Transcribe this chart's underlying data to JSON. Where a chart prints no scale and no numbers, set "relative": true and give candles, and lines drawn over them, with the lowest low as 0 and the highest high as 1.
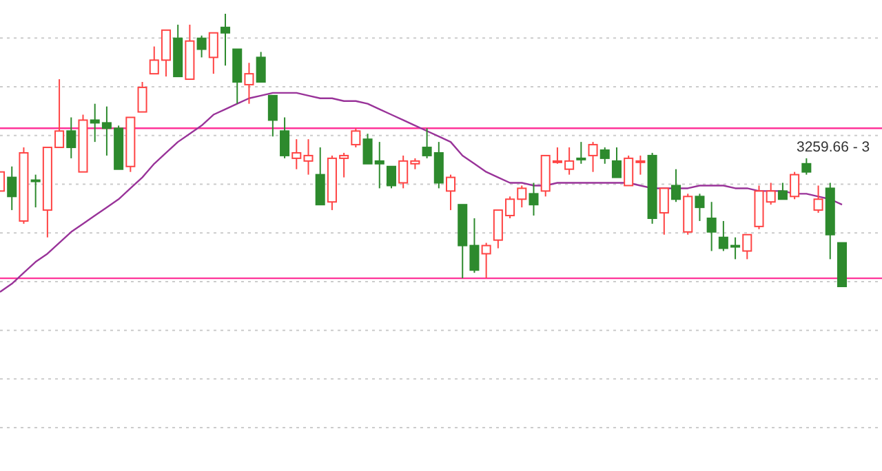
{
  "chart_data": {
    "type": "candlestick",
    "relative": true,
    "grid": "y",
    "categories": [
      null,
      null,
      null,
      null,
      null,
      null,
      null,
      null,
      null,
      null,
      null,
      null,
      null,
      null,
      null,
      null,
      null,
      null,
      null,
      null,
      null,
      null,
      null,
      null,
      null,
      null,
      null,
      null,
      null,
      null,
      null,
      null,
      null,
      null,
      null,
      null,
      null,
      null,
      null,
      null,
      null,
      null,
      null,
      null,
      null,
      null,
      null,
      null,
      null,
      null,
      null,
      null,
      null,
      null,
      null,
      null,
      null,
      null,
      null,
      null,
      null,
      null,
      null,
      null,
      null,
      null,
      null,
      null,
      null,
      null,
      null,
      null
    ],
    "ohlc": [
      [
        0.35,
        0.42,
        0.35,
        0.42
      ],
      [
        0.4,
        0.44,
        0.28,
        0.33
      ],
      [
        0.24,
        0.51,
        0.23,
        0.49
      ],
      [
        0.39,
        0.41,
        0.29,
        0.39
      ],
      [
        0.28,
        0.51,
        0.18,
        0.51
      ],
      [
        0.51,
        0.76,
        0.51,
        0.57
      ],
      [
        0.57,
        0.62,
        0.47,
        0.51
      ],
      [
        0.42,
        0.63,
        0.42,
        0.61
      ],
      [
        0.61,
        0.67,
        0.53,
        0.6
      ],
      [
        0.6,
        0.66,
        0.48,
        0.58
      ],
      [
        0.58,
        0.59,
        0.43,
        0.43
      ],
      [
        0.44,
        0.62,
        0.42,
        0.62
      ],
      [
        0.64,
        0.75,
        0.64,
        0.73
      ],
      [
        0.78,
        0.88,
        0.78,
        0.83
      ],
      [
        0.83,
        0.94,
        0.77,
        0.94
      ],
      [
        0.91,
        0.96,
        0.77,
        0.77
      ],
      [
        0.76,
        0.96,
        0.76,
        0.9
      ],
      [
        0.91,
        0.92,
        0.84,
        0.87
      ],
      [
        0.84,
        0.93,
        0.78,
        0.93
      ],
      [
        0.95,
        1.0,
        0.81,
        0.93
      ],
      [
        0.87,
        0.87,
        0.67,
        0.75
      ],
      [
        0.74,
        0.82,
        0.67,
        0.78
      ],
      [
        0.84,
        0.86,
        0.75,
        0.75
      ],
      [
        0.7,
        0.7,
        0.55,
        0.61
      ],
      [
        0.57,
        0.62,
        0.47,
        0.48
      ],
      [
        0.47,
        0.54,
        0.43,
        0.49
      ],
      [
        0.46,
        0.54,
        0.41,
        0.48
      ],
      [
        0.41,
        0.51,
        0.3,
        0.3
      ],
      [
        0.31,
        0.48,
        0.28,
        0.47
      ],
      [
        0.47,
        0.49,
        0.4,
        0.48
      ],
      [
        0.52,
        0.58,
        0.51,
        0.57
      ],
      [
        0.54,
        0.56,
        0.45,
        0.45
      ],
      [
        0.46,
        0.53,
        0.36,
        0.45
      ],
      [
        0.44,
        0.44,
        0.36,
        0.37
      ],
      [
        0.38,
        0.48,
        0.36,
        0.46
      ],
      [
        0.45,
        0.47,
        0.43,
        0.46
      ],
      [
        0.51,
        0.58,
        0.47,
        0.48
      ],
      [
        0.49,
        0.53,
        0.36,
        0.38
      ],
      [
        0.35,
        0.41,
        0.28,
        0.4
      ],
      [
        0.3,
        0.3,
        0.03,
        0.15
      ],
      [
        0.15,
        0.25,
        0.05,
        0.06
      ],
      [
        0.12,
        0.16,
        0.03,
        0.15
      ],
      [
        0.17,
        0.28,
        0.14,
        0.28
      ],
      [
        0.26,
        0.33,
        0.25,
        0.32
      ],
      [
        0.32,
        0.37,
        0.29,
        0.36
      ],
      [
        0.34,
        0.38,
        0.26,
        0.3
      ],
      [
        0.35,
        0.48,
        0.33,
        0.48
      ],
      [
        0.46,
        0.51,
        0.45,
        0.46
      ],
      [
        0.43,
        0.51,
        0.41,
        0.46
      ],
      [
        0.47,
        0.53,
        0.45,
        0.47
      ],
      [
        0.48,
        0.53,
        0.42,
        0.52
      ],
      [
        0.5,
        0.51,
        0.45,
        0.47
      ],
      [
        0.46,
        0.51,
        0.4,
        0.4
      ],
      [
        0.37,
        0.48,
        0.37,
        0.47
      ],
      [
        0.46,
        0.48,
        0.41,
        0.46
      ],
      [
        0.48,
        0.49,
        0.23,
        0.25
      ],
      [
        0.27,
        0.36,
        0.19,
        0.36
      ],
      [
        0.37,
        0.43,
        0.31,
        0.32
      ],
      [
        0.2,
        0.34,
        0.19,
        0.33
      ],
      [
        0.33,
        0.34,
        0.24,
        0.29
      ],
      [
        0.25,
        0.31,
        0.13,
        0.2
      ],
      [
        0.18,
        0.24,
        0.13,
        0.14
      ],
      [
        0.15,
        0.18,
        0.1,
        0.15
      ],
      [
        0.13,
        0.19,
        0.1,
        0.19
      ],
      [
        0.22,
        0.37,
        0.21,
        0.35
      ],
      [
        0.31,
        0.38,
        0.3,
        0.35
      ],
      [
        0.35,
        0.38,
        0.32,
        0.32
      ],
      [
        0.33,
        0.42,
        0.32,
        0.41
      ],
      [
        0.45,
        0.47,
        0.41,
        0.42
      ],
      [
        0.28,
        0.37,
        0.27,
        0.32
      ],
      [
        0.36,
        0.38,
        0.1,
        0.19
      ],
      [
        0.16,
        0.16,
        0,
        0
      ]
    ],
    "colors": [
      "#ff4444",
      "#2d8a2d",
      "#ff4444",
      "#2d8a2d",
      "#ff4444",
      "#ff4444",
      "#2d8a2d",
      "#ff4444",
      "#2d8a2d",
      "#2d8a2d",
      "#2d8a2d",
      "#ff4444",
      "#ff4444",
      "#ff4444",
      "#ff4444",
      "#2d8a2d",
      "#ff4444",
      "#2d8a2d",
      "#ff4444",
      "#2d8a2d",
      "#2d8a2d",
      "#ff4444",
      "#2d8a2d",
      "#2d8a2d",
      "#2d8a2d",
      "#ff4444",
      "#ff4444",
      "#2d8a2d",
      "#ff4444",
      "#ff4444",
      "#ff4444",
      "#2d8a2d",
      "#2d8a2d",
      "#2d8a2d",
      "#ff4444",
      "#ff4444",
      "#2d8a2d",
      "#2d8a2d",
      "#ff4444",
      "#2d8a2d",
      "#2d8a2d",
      "#ff4444",
      "#ff4444",
      "#ff4444",
      "#ff4444",
      "#2d8a2d",
      "#ff4444",
      "#ff4444",
      "#ff4444",
      "#2d8a2d",
      "#ff4444",
      "#2d8a2d",
      "#2d8a2d",
      "#ff4444",
      "#ff4444",
      "#2d8a2d",
      "#ff4444",
      "#2d8a2d",
      "#ff4444",
      "#2d8a2d",
      "#2d8a2d",
      "#2d8a2d",
      "#2d8a2d",
      "#ff4444",
      "#ff4444",
      "#ff4444",
      "#2d8a2d",
      "#ff4444",
      "#2d8a2d",
      "#ff4444",
      "#2d8a2d",
      "#2d8a2d"
    ],
    "series": [
      {
        "type": "line",
        "color": "#993399",
        "values": [
          -0.02,
          0.01,
          0.05,
          0.09,
          0.12,
          0.16,
          0.2,
          0.23,
          0.26,
          0.29,
          0.32,
          0.36,
          0.4,
          0.45,
          0.49,
          0.53,
          0.56,
          0.59,
          0.63,
          0.65,
          0.67,
          0.69,
          0.7,
          0.71,
          0.71,
          0.71,
          0.7,
          0.69,
          0.69,
          0.68,
          0.68,
          0.67,
          0.65,
          0.63,
          0.61,
          0.59,
          0.57,
          0.55,
          0.53,
          0.48,
          0.45,
          0.42,
          0.4,
          0.38,
          0.38,
          0.37,
          0.37,
          0.38,
          0.38,
          0.38,
          0.38,
          0.38,
          0.38,
          0.38,
          0.37,
          0.36,
          0.36,
          0.36,
          0.36,
          0.37,
          0.37,
          0.37,
          0.36,
          0.36,
          0.35,
          0.35,
          0.35,
          0.34,
          0.34,
          0.33,
          0.32,
          0.3
        ]
      }
    ],
    "ref_lines": [
      {
        "axis": "y",
        "value": 0.58,
        "color": "#ff3399"
      },
      {
        "axis": "y",
        "value": 0.03,
        "color": "#ff3399"
      }
    ],
    "annotations": [
      "3259.66 - 3"
    ]
  }
}
